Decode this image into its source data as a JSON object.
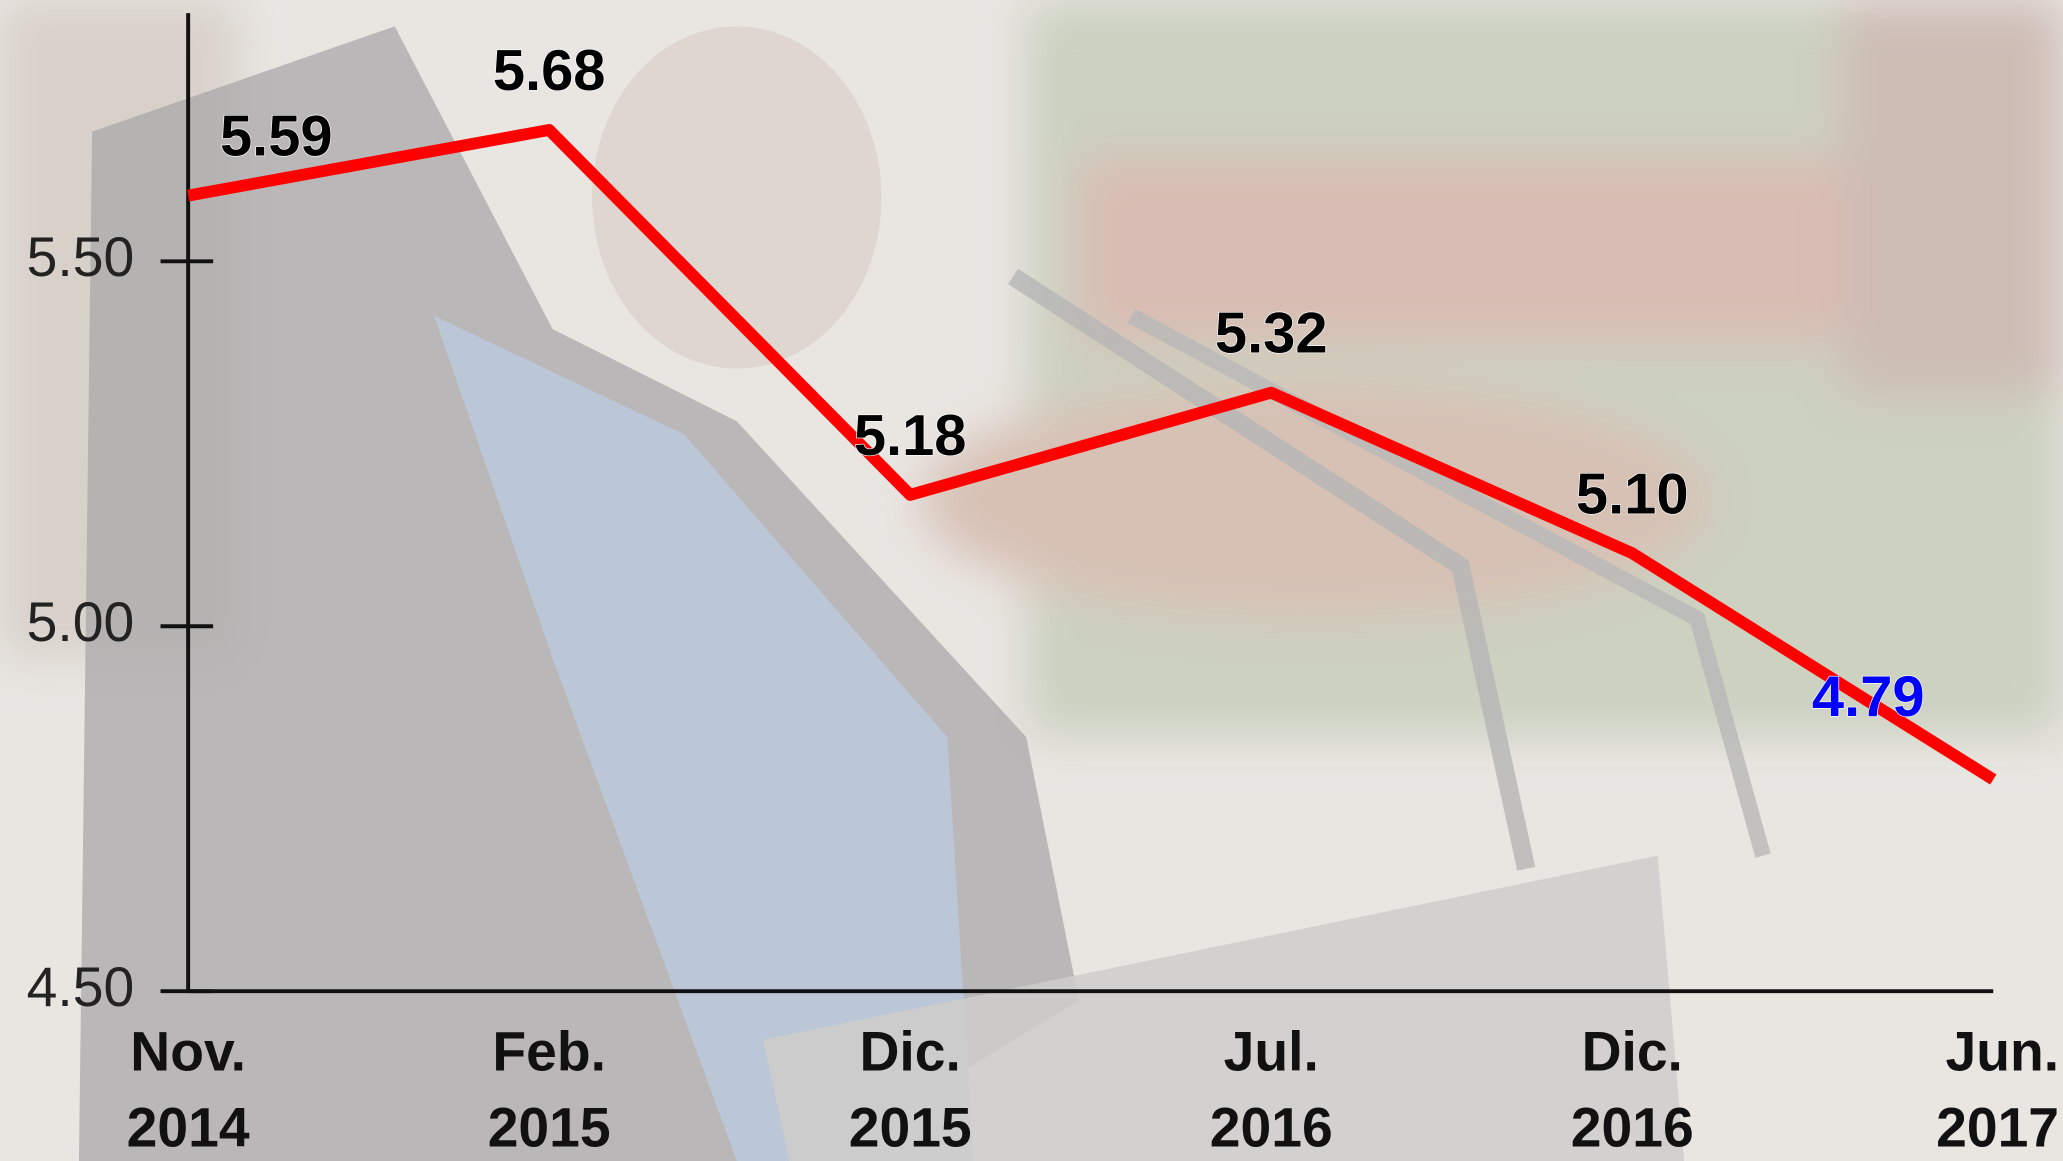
{
  "chart_data": {
    "type": "line",
    "categories": [
      [
        "Nov.",
        "2014"
      ],
      [
        "Feb.",
        "2015"
      ],
      [
        "Dic.",
        "2015"
      ],
      [
        "Jul.",
        "2016"
      ],
      [
        "Dic.",
        "2016"
      ],
      [
        "Jun.",
        "2017"
      ]
    ],
    "values": [
      5.59,
      5.68,
      5.18,
      5.32,
      5.1,
      4.79
    ],
    "value_labels": [
      "5.59",
      "5.68",
      "5.18",
      "5.32",
      "5.10",
      "4.79"
    ],
    "color": "#ff0000",
    "label_colors": [
      "#000000",
      "#000000",
      "#000000",
      "#000000",
      "#000000",
      "#0000ff"
    ],
    "ylim": [
      4.5,
      5.84
    ],
    "yticks": [
      {
        "value": 4.5,
        "label": "4.50"
      },
      {
        "value": 5,
        "label": "5.00"
      },
      {
        "value": 5.5,
        "label": "5.50"
      }
    ],
    "grid": false
  }
}
